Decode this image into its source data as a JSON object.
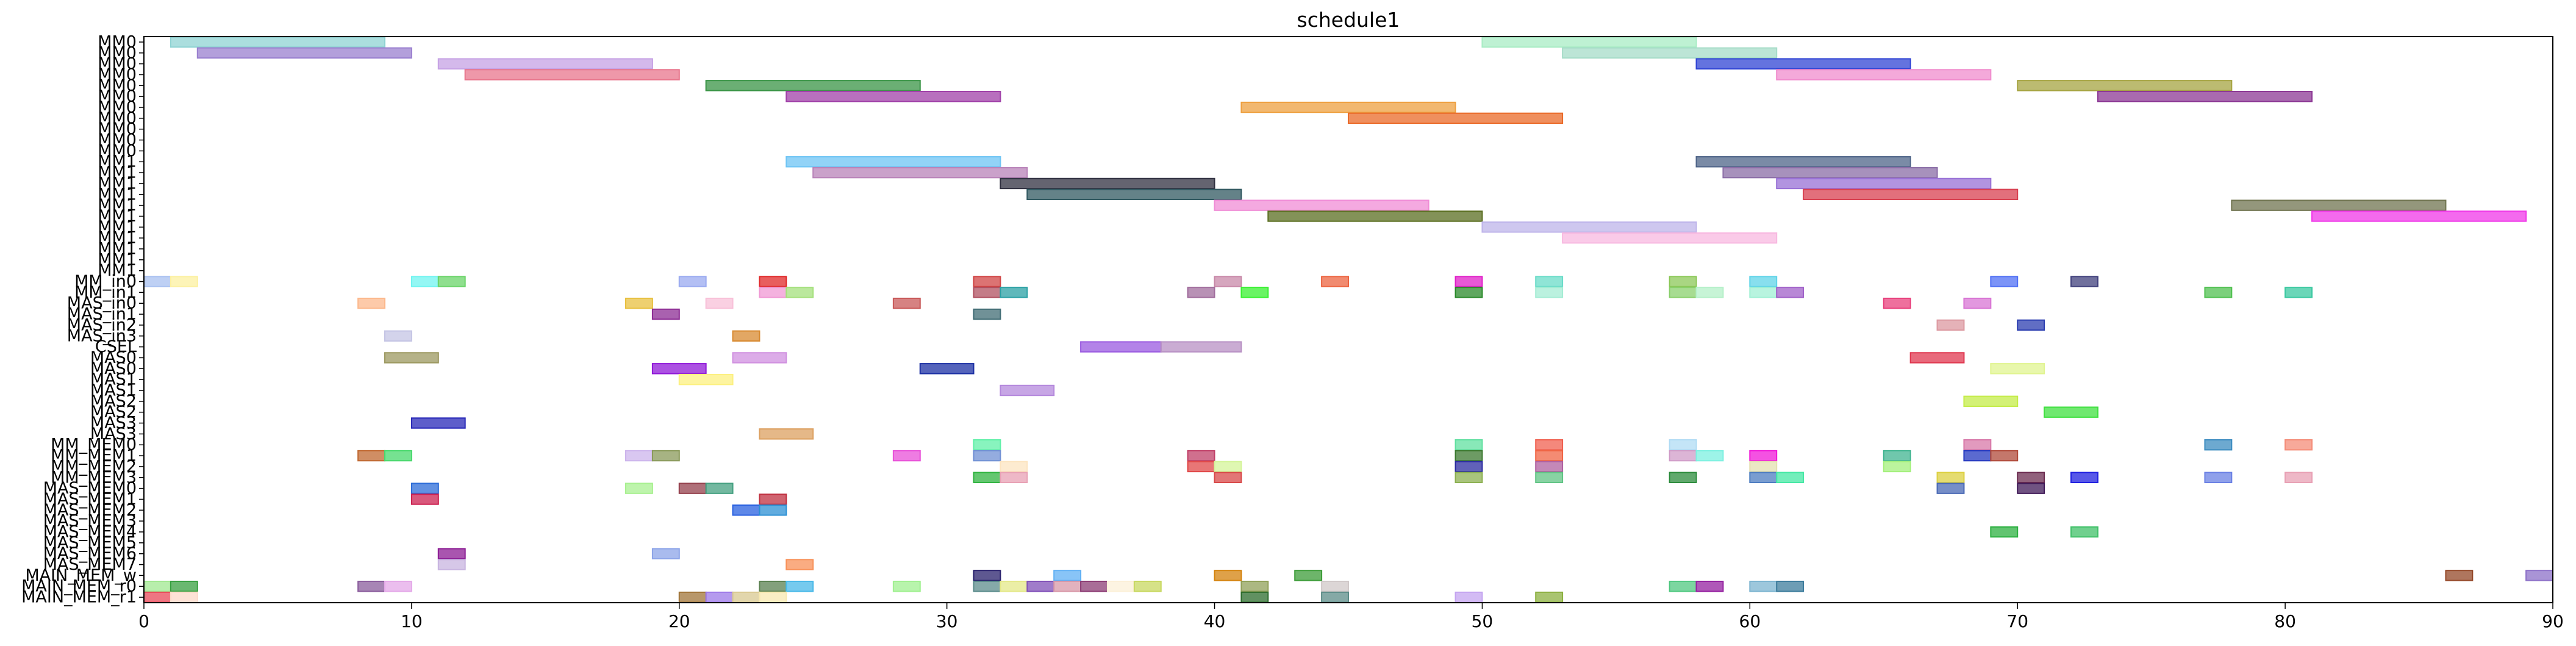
{
  "chart_data": {
    "type": "gantt",
    "title": "schedule1",
    "xlim": [
      0,
      90
    ],
    "x_ticks": [
      0,
      10,
      20,
      30,
      40,
      50,
      60,
      70,
      80,
      90
    ],
    "rows": [
      "MM0",
      "MM0",
      "MM0",
      "MM0",
      "MM0",
      "MM0",
      "MM0",
      "MM0",
      "MM0",
      "MM0",
      "MM0",
      "MM1",
      "MM1",
      "MM1",
      "MM1",
      "MM1",
      "MM1",
      "MM1",
      "MM1",
      "MM1",
      "MM1",
      "MM1",
      "MM_in0",
      "MM_in1",
      "MAS_in0",
      "MAS_in1",
      "MAS_in2",
      "MAS_in3",
      "CSEL",
      "MAS0",
      "MAS0",
      "MAS1",
      "MAS1",
      "MAS2",
      "MAS2",
      "MAS3",
      "MAS3",
      "MM_MEM0",
      "MM_MEM1",
      "MM_MEM2",
      "MM_MEM3",
      "MAS_MEM0",
      "MAS_MEM1",
      "MAS_MEM2",
      "MAS_MEM3",
      "MAS_MEM4",
      "MAS_MEM5",
      "MAS_MEM6",
      "MAS_MEM7",
      "MAIN_MEM_w",
      "MAIN_MEM_r0",
      "MAIN_MEM_r1"
    ],
    "tasks": [
      {
        "row": 0,
        "start": 1,
        "end": 9,
        "color": "#8fd3d3"
      },
      {
        "row": 0,
        "start": 50,
        "end": 58,
        "color": "#a8ecc4"
      },
      {
        "row": 1,
        "start": 2,
        "end": 10,
        "color": "#9a7fcf"
      },
      {
        "row": 1,
        "start": 53,
        "end": 61,
        "color": "#a6dcc8"
      },
      {
        "row": 2,
        "start": 11,
        "end": 19,
        "color": "#c6a2e4"
      },
      {
        "row": 2,
        "start": 58,
        "end": 66,
        "color": "#3044d4"
      },
      {
        "row": 3,
        "start": 12,
        "end": 20,
        "color": "#e8768c"
      },
      {
        "row": 3,
        "start": 61,
        "end": 69,
        "color": "#f08ccd"
      },
      {
        "row": 4,
        "start": 21,
        "end": 29,
        "color": "#3a9446"
      },
      {
        "row": 4,
        "start": 70,
        "end": 78,
        "color": "#a6a442"
      },
      {
        "row": 5,
        "start": 24,
        "end": 32,
        "color": "#a040a8"
      },
      {
        "row": 5,
        "start": 73,
        "end": 81,
        "color": "#8c3894"
      },
      {
        "row": 6,
        "start": 41,
        "end": 49,
        "color": "#eea040"
      },
      {
        "row": 7,
        "start": 45,
        "end": 53,
        "color": "#ea6a28"
      },
      {
        "row": 11,
        "start": 24,
        "end": 32,
        "color": "#6ec4f4"
      },
      {
        "row": 11,
        "start": 58,
        "end": 66,
        "color": "#4e6488"
      },
      {
        "row": 12,
        "start": 25,
        "end": 33,
        "color": "#b882b8"
      },
      {
        "row": 12,
        "start": 59,
        "end": 67,
        "color": "#8a6ca6"
      },
      {
        "row": 13,
        "start": 32,
        "end": 40,
        "color": "#303040"
      },
      {
        "row": 13,
        "start": 61,
        "end": 69,
        "color": "#9870d6"
      },
      {
        "row": 14,
        "start": 33,
        "end": 41,
        "color": "#305860"
      },
      {
        "row": 14,
        "start": 62,
        "end": 70,
        "color": "#d84050"
      },
      {
        "row": 15,
        "start": 40,
        "end": 48,
        "color": "#f08cd6"
      },
      {
        "row": 15,
        "start": 78,
        "end": 86,
        "color": "#707450"
      },
      {
        "row": 16,
        "start": 42,
        "end": 50,
        "color": "#5a6e20"
      },
      {
        "row": 16,
        "start": 81,
        "end": 89,
        "color": "#f038e8"
      },
      {
        "row": 17,
        "start": 50,
        "end": 58,
        "color": "#beb4ea"
      },
      {
        "row": 18,
        "start": 53,
        "end": 61,
        "color": "#f8b8e0"
      },
      {
        "row": 22,
        "start": 0,
        "end": 1,
        "color": "#a8c0f0"
      },
      {
        "row": 22,
        "start": 1,
        "end": 2,
        "color": "#fcf0a0"
      },
      {
        "row": 22,
        "start": 10,
        "end": 11,
        "color": "#70f4f0"
      },
      {
        "row": 22,
        "start": 11,
        "end": 12,
        "color": "#6ad468"
      },
      {
        "row": 22,
        "start": 20,
        "end": 21,
        "color": "#9aaaf0"
      },
      {
        "row": 22,
        "start": 23,
        "end": 24,
        "color": "#e02828"
      },
      {
        "row": 22,
        "start": 31,
        "end": 32,
        "color": "#d04444"
      },
      {
        "row": 22,
        "start": 40,
        "end": 41,
        "color": "#c888a8"
      },
      {
        "row": 22,
        "start": 44,
        "end": 45,
        "color": "#ec6440"
      },
      {
        "row": 22,
        "start": 49,
        "end": 50,
        "color": "#e020c8"
      },
      {
        "row": 22,
        "start": 52,
        "end": 53,
        "color": "#6adcc8"
      },
      {
        "row": 22,
        "start": 57,
        "end": 58,
        "color": "#8cc858"
      },
      {
        "row": 22,
        "start": 60,
        "end": 61,
        "color": "#60d4e8"
      },
      {
        "row": 22,
        "start": 69,
        "end": 70,
        "color": "#5070f4"
      },
      {
        "row": 22,
        "start": 72,
        "end": 73,
        "color": "#40407c"
      },
      {
        "row": 23,
        "start": 23,
        "end": 24,
        "color": "#f098d4"
      },
      {
        "row": 23,
        "start": 24,
        "end": 25,
        "color": "#a4e07c"
      },
      {
        "row": 23,
        "start": 31,
        "end": 32,
        "color": "#b05060"
      },
      {
        "row": 23,
        "start": 32,
        "end": 33,
        "color": "#2aa0a4"
      },
      {
        "row": 23,
        "start": 39,
        "end": 40,
        "color": "#a06c9c"
      },
      {
        "row": 23,
        "start": 41,
        "end": 42,
        "color": "#38f030"
      },
      {
        "row": 23,
        "start": 49,
        "end": 50,
        "color": "#2a8a2a"
      },
      {
        "row": 23,
        "start": 52,
        "end": 53,
        "color": "#a4ecd4"
      },
      {
        "row": 23,
        "start": 57,
        "end": 58,
        "color": "#8ad06c"
      },
      {
        "row": 23,
        "start": 58,
        "end": 59,
        "color": "#b4f0c8"
      },
      {
        "row": 23,
        "start": 60,
        "end": 61,
        "color": "#a0f0d4"
      },
      {
        "row": 23,
        "start": 61,
        "end": 62,
        "color": "#a060c8"
      },
      {
        "row": 23,
        "start": 77,
        "end": 78,
        "color": "#50c050"
      },
      {
        "row": 23,
        "start": 80,
        "end": 81,
        "color": "#3ac8a0"
      },
      {
        "row": 24,
        "start": 8,
        "end": 9,
        "color": "#fcb88c"
      },
      {
        "row": 24,
        "start": 18,
        "end": 19,
        "color": "#e8c040"
      },
      {
        "row": 24,
        "start": 21,
        "end": 22,
        "color": "#f8c0d8"
      },
      {
        "row": 24,
        "start": 28,
        "end": 29,
        "color": "#c85858"
      },
      {
        "row": 24,
        "start": 65,
        "end": 66,
        "color": "#e8407c"
      },
      {
        "row": 24,
        "start": 68,
        "end": 69,
        "color": "#d874d4"
      },
      {
        "row": 25,
        "start": 19,
        "end": 20,
        "color": "#8c2c94"
      },
      {
        "row": 25,
        "start": 31,
        "end": 32,
        "color": "#406c74"
      },
      {
        "row": 26,
        "start": 67,
        "end": 68,
        "color": "#dc98a0"
      },
      {
        "row": 26,
        "start": 70,
        "end": 71,
        "color": "#2c3eb0"
      },
      {
        "row": 27,
        "start": 9,
        "end": 10,
        "color": "#c4c4e4"
      },
      {
        "row": 27,
        "start": 22,
        "end": 23,
        "color": "#d88a30"
      },
      {
        "row": 28,
        "start": 35,
        "end": 38,
        "color": "#9a5ae0"
      },
      {
        "row": 28,
        "start": 38,
        "end": 41,
        "color": "#b890c4"
      },
      {
        "row": 29,
        "start": 9,
        "end": 11,
        "color": "#9c9860"
      },
      {
        "row": 29,
        "start": 22,
        "end": 24,
        "color": "#d090e0"
      },
      {
        "row": 29,
        "start": 66,
        "end": 68,
        "color": "#e03850"
      },
      {
        "row": 30,
        "start": 19,
        "end": 21,
        "color": "#9018d8"
      },
      {
        "row": 30,
        "start": 29,
        "end": 31,
        "color": "#1c30a4"
      },
      {
        "row": 30,
        "start": 69,
        "end": 71,
        "color": "#e0f490"
      },
      {
        "row": 31,
        "start": 20,
        "end": 22,
        "color": "#fcf080"
      },
      {
        "row": 32,
        "start": 32,
        "end": 34,
        "color": "#b488dc"
      },
      {
        "row": 33,
        "start": 68,
        "end": 70,
        "color": "#c4ec48"
      },
      {
        "row": 34,
        "start": 71,
        "end": 73,
        "color": "#40e040"
      },
      {
        "row": 35,
        "start": 10,
        "end": 12,
        "color": "#2828b8"
      },
      {
        "row": 36,
        "start": 23,
        "end": 25,
        "color": "#dca060"
      },
      {
        "row": 37,
        "start": 31,
        "end": 32,
        "color": "#60f0a8"
      },
      {
        "row": 37,
        "start": 49,
        "end": 50,
        "color": "#60e0a0"
      },
      {
        "row": 37,
        "start": 52,
        "end": 53,
        "color": "#f06050"
      },
      {
        "row": 37,
        "start": 57,
        "end": 58,
        "color": "#b0dcf4"
      },
      {
        "row": 37,
        "start": 68,
        "end": 69,
        "color": "#d878a8"
      },
      {
        "row": 37,
        "start": 77,
        "end": 78,
        "color": "#3c8cc0"
      },
      {
        "row": 37,
        "start": 80,
        "end": 81,
        "color": "#f48c78"
      },
      {
        "row": 38,
        "start": 8,
        "end": 9,
        "color": "#c06830"
      },
      {
        "row": 38,
        "start": 9,
        "end": 10,
        "color": "#48d86c"
      },
      {
        "row": 38,
        "start": 18,
        "end": 19,
        "color": "#ccb4ec"
      },
      {
        "row": 38,
        "start": 19,
        "end": 20,
        "color": "#8a9a5a"
      },
      {
        "row": 38,
        "start": 28,
        "end": 29,
        "color": "#e850d8"
      },
      {
        "row": 38,
        "start": 31,
        "end": 32,
        "color": "#7090d4"
      },
      {
        "row": 38,
        "start": 39,
        "end": 40,
        "color": "#c04068"
      },
      {
        "row": 38,
        "start": 49,
        "end": 50,
        "color": "#3c7a30"
      },
      {
        "row": 38,
        "start": 52,
        "end": 53,
        "color": "#f06444"
      },
      {
        "row": 38,
        "start": 57,
        "end": 58,
        "color": "#d09cc8"
      },
      {
        "row": 38,
        "start": 58,
        "end": 59,
        "color": "#7cf0e0"
      },
      {
        "row": 38,
        "start": 60,
        "end": 61,
        "color": "#f018d8"
      },
      {
        "row": 38,
        "start": 65,
        "end": 66,
        "color": "#40b490"
      },
      {
        "row": 38,
        "start": 68,
        "end": 69,
        "color": "#2438c0"
      },
      {
        "row": 38,
        "start": 69,
        "end": 70,
        "color": "#b04a3a"
      },
      {
        "row": 39,
        "start": 32,
        "end": 33,
        "color": "#fce4c0"
      },
      {
        "row": 39,
        "start": 39,
        "end": 40,
        "color": "#e04848"
      },
      {
        "row": 39,
        "start": 40,
        "end": 41,
        "color": "#d4f498"
      },
      {
        "row": 39,
        "start": 49,
        "end": 50,
        "color": "#2c2ca0"
      },
      {
        "row": 39,
        "start": 52,
        "end": 53,
        "color": "#b060a0"
      },
      {
        "row": 39,
        "start": 60,
        "end": 61,
        "color": "#e4e0b0"
      },
      {
        "row": 39,
        "start": 65,
        "end": 66,
        "color": "#a4f07c"
      },
      {
        "row": 40,
        "start": 31,
        "end": 32,
        "color": "#30b440"
      },
      {
        "row": 40,
        "start": 32,
        "end": 33,
        "color": "#e8a0b4"
      },
      {
        "row": 40,
        "start": 40,
        "end": 41,
        "color": "#d84848"
      },
      {
        "row": 40,
        "start": 49,
        "end": 50,
        "color": "#8cb050"
      },
      {
        "row": 40,
        "start": 52,
        "end": 53,
        "color": "#60c484"
      },
      {
        "row": 40,
        "start": 57,
        "end": 58,
        "color": "#2c8c3c"
      },
      {
        "row": 40,
        "start": 60,
        "end": 61,
        "color": "#4c7cc0"
      },
      {
        "row": 40,
        "start": 61,
        "end": 62,
        "color": "#44e8a4"
      },
      {
        "row": 40,
        "start": 67,
        "end": 68,
        "color": "#dcd040"
      },
      {
        "row": 40,
        "start": 70,
        "end": 71,
        "color": "#6c2c50"
      },
      {
        "row": 40,
        "start": 72,
        "end": 73,
        "color": "#2020e0"
      },
      {
        "row": 40,
        "start": 77,
        "end": 78,
        "color": "#6a80e4"
      },
      {
        "row": 40,
        "start": 80,
        "end": 81,
        "color": "#e8a0b4"
      },
      {
        "row": 41,
        "start": 18,
        "end": 19,
        "color": "#a8f090"
      },
      {
        "row": 41,
        "start": 20,
        "end": 21,
        "color": "#94404c"
      },
      {
        "row": 41,
        "start": 21,
        "end": 22,
        "color": "#44a080"
      },
      {
        "row": 41,
        "start": 10,
        "end": 11,
        "color": "#2c6cd8"
      },
      {
        "row": 41,
        "start": 67,
        "end": 68,
        "color": "#4868b4"
      },
      {
        "row": 41,
        "start": 70,
        "end": 71,
        "color": "#401a58"
      },
      {
        "row": 42,
        "start": 10,
        "end": 11,
        "color": "#cc2050"
      },
      {
        "row": 42,
        "start": 23,
        "end": 24,
        "color": "#c03040"
      },
      {
        "row": 43,
        "start": 22,
        "end": 23,
        "color": "#2860e0"
      },
      {
        "row": 43,
        "start": 23,
        "end": 24,
        "color": "#2c90d4"
      },
      {
        "row": 45,
        "start": 69,
        "end": 70,
        "color": "#2cb040"
      },
      {
        "row": 45,
        "start": 72,
        "end": 73,
        "color": "#40c068"
      },
      {
        "row": 47,
        "start": 11,
        "end": 12,
        "color": "#8c1c94"
      },
      {
        "row": 47,
        "start": 19,
        "end": 20,
        "color": "#8ca4e8"
      },
      {
        "row": 48,
        "start": 11,
        "end": 12,
        "color": "#c8b4e0"
      },
      {
        "row": 48,
        "start": 24,
        "end": 25,
        "color": "#f89058"
      },
      {
        "row": 49,
        "start": 31,
        "end": 32,
        "color": "#28206c"
      },
      {
        "row": 49,
        "start": 34,
        "end": 35,
        "color": "#60b0f4"
      },
      {
        "row": 49,
        "start": 40,
        "end": 41,
        "color": "#d4820c"
      },
      {
        "row": 49,
        "start": 43,
        "end": 44,
        "color": "#3c9c38"
      },
      {
        "row": 49,
        "start": 86,
        "end": 87,
        "color": "#944828"
      },
      {
        "row": 49,
        "start": 89,
        "end": 90,
        "color": "#8c70c8"
      },
      {
        "row": 50,
        "start": 0,
        "end": 1,
        "color": "#a0e890"
      },
      {
        "row": 50,
        "start": 1,
        "end": 2,
        "color": "#38a040"
      },
      {
        "row": 50,
        "start": 8,
        "end": 9,
        "color": "#8a5c9c"
      },
      {
        "row": 50,
        "start": 9,
        "end": 10,
        "color": "#e4a8e8"
      },
      {
        "row": 50,
        "start": 23,
        "end": 24,
        "color": "#5a8050"
      },
      {
        "row": 50,
        "start": 24,
        "end": 25,
        "color": "#48b8e8"
      },
      {
        "row": 50,
        "start": 28,
        "end": 29,
        "color": "#a0f090"
      },
      {
        "row": 50,
        "start": 31,
        "end": 32,
        "color": "#5c8c8c"
      },
      {
        "row": 50,
        "start": 32,
        "end": 33,
        "color": "#e4e888"
      },
      {
        "row": 50,
        "start": 33,
        "end": 34,
        "color": "#8050b8"
      },
      {
        "row": 50,
        "start": 34,
        "end": 35,
        "color": "#d898a8"
      },
      {
        "row": 50,
        "start": 35,
        "end": 36,
        "color": "#8c3c74"
      },
      {
        "row": 50,
        "start": 36,
        "end": 37,
        "color": "#fcf0d8"
      },
      {
        "row": 50,
        "start": 37,
        "end": 38,
        "color": "#c8d860"
      },
      {
        "row": 50,
        "start": 41,
        "end": 42,
        "color": "#90a058"
      },
      {
        "row": 50,
        "start": 44,
        "end": 45,
        "color": "#d0c8c8"
      },
      {
        "row": 50,
        "start": 57,
        "end": 58,
        "color": "#50c880"
      },
      {
        "row": 50,
        "start": 58,
        "end": 59,
        "color": "#9420a0"
      },
      {
        "row": 50,
        "start": 60,
        "end": 61,
        "color": "#7cb4d0"
      },
      {
        "row": 50,
        "start": 61,
        "end": 62,
        "color": "#3c7c9c"
      },
      {
        "row": 51,
        "start": 0,
        "end": 1,
        "color": "#e84858"
      },
      {
        "row": 51,
        "start": 1,
        "end": 2,
        "color": "#fcd8c8"
      },
      {
        "row": 51,
        "start": 20,
        "end": 21,
        "color": "#a07438"
      },
      {
        "row": 51,
        "start": 21,
        "end": 22,
        "color": "#9c78e8"
      },
      {
        "row": 51,
        "start": 22,
        "end": 23,
        "color": "#d8c890"
      },
      {
        "row": 51,
        "start": 23,
        "end": 24,
        "color": "#f8e8b0"
      },
      {
        "row": 51,
        "start": 41,
        "end": 42,
        "color": "#2c6c2c"
      },
      {
        "row": 51,
        "start": 44,
        "end": 45,
        "color": "#5c8c88"
      },
      {
        "row": 51,
        "start": 49,
        "end": 50,
        "color": "#c4a4f0"
      },
      {
        "row": 51,
        "start": 52,
        "end": 53,
        "color": "#8cb040"
      }
    ]
  }
}
